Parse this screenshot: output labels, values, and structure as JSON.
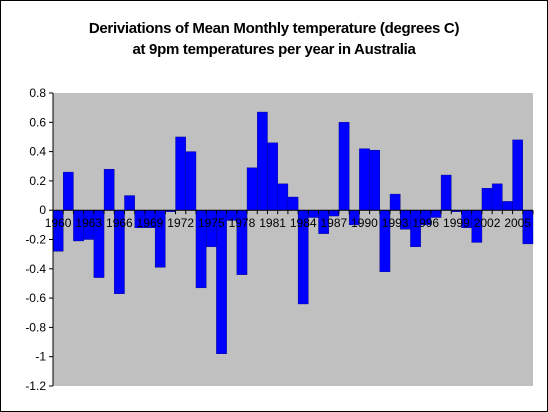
{
  "colors": {
    "plot_area": "#c0c0c0",
    "bar_fill": "#0000ff",
    "bar_stroke": "#000080",
    "axis": "#000000"
  },
  "chart_data": {
    "type": "bar",
    "title_line1": "Deriviations of Mean Monthly temperature (degrees C)",
    "title_line2": "at 9pm temperatures per year in Australia",
    "xlabel": "",
    "ylabel": "",
    "ylim": [
      -1.2,
      0.8
    ],
    "yticks": [
      0.8,
      0.6,
      0.4,
      0.2,
      0,
      -0.2,
      -0.4,
      -0.6,
      -0.8,
      -1,
      -1.2
    ],
    "ytick_labels": [
      "0.8",
      "0.6",
      "0.4",
      "0.2",
      "0",
      "-0.2",
      "-0.4",
      "-0.6",
      "-0.8",
      "-1",
      "-1.2"
    ],
    "grid": false,
    "legend": "none",
    "x": [
      1960,
      1961,
      1962,
      1963,
      1964,
      1965,
      1966,
      1967,
      1968,
      1969,
      1970,
      1971,
      1972,
      1973,
      1974,
      1975,
      1976,
      1977,
      1978,
      1979,
      1980,
      1981,
      1982,
      1983,
      1984,
      1985,
      1986,
      1987,
      1988,
      1989,
      1990,
      1991,
      1992,
      1993,
      1994,
      1995,
      1996,
      1997,
      1998,
      1999,
      2000,
      2001,
      2002,
      2003,
      2004,
      2005,
      2006
    ],
    "x_tick_labels": [
      {
        "year": 1960,
        "label": "1960"
      },
      {
        "year": 1963,
        "label": "1963"
      },
      {
        "year": 1966,
        "label": "1966"
      },
      {
        "year": 1969,
        "label": "1969"
      },
      {
        "year": 1972,
        "label": "1972"
      },
      {
        "year": 1975,
        "label": "1975"
      },
      {
        "year": 1978,
        "label": "1978"
      },
      {
        "year": 1981,
        "label": "1981"
      },
      {
        "year": 1984,
        "label": "1984"
      },
      {
        "year": 1987,
        "label": "1987"
      },
      {
        "year": 1990,
        "label": "1990"
      },
      {
        "year": 1993,
        "label": "1993"
      },
      {
        "year": 1996,
        "label": "1996"
      },
      {
        "year": 1999,
        "label": "1999"
      },
      {
        "year": 2002,
        "label": "2002"
      },
      {
        "year": 2005,
        "label": "2005"
      }
    ],
    "values": [
      -0.28,
      0.26,
      -0.21,
      -0.2,
      -0.46,
      0.28,
      -0.57,
      0.1,
      -0.12,
      -0.12,
      -0.39,
      -0.01,
      0.5,
      0.4,
      -0.53,
      -0.25,
      -0.98,
      -0.07,
      -0.44,
      0.29,
      0.67,
      0.46,
      0.18,
      0.09,
      -0.64,
      -0.05,
      -0.16,
      -0.04,
      0.6,
      -0.1,
      0.42,
      0.41,
      -0.42,
      0.11,
      -0.13,
      -0.25,
      -0.1,
      -0.05,
      0.24,
      -0.01,
      -0.12,
      -0.22,
      0.15,
      0.18,
      0.06,
      0.48,
      -0.23
    ]
  }
}
